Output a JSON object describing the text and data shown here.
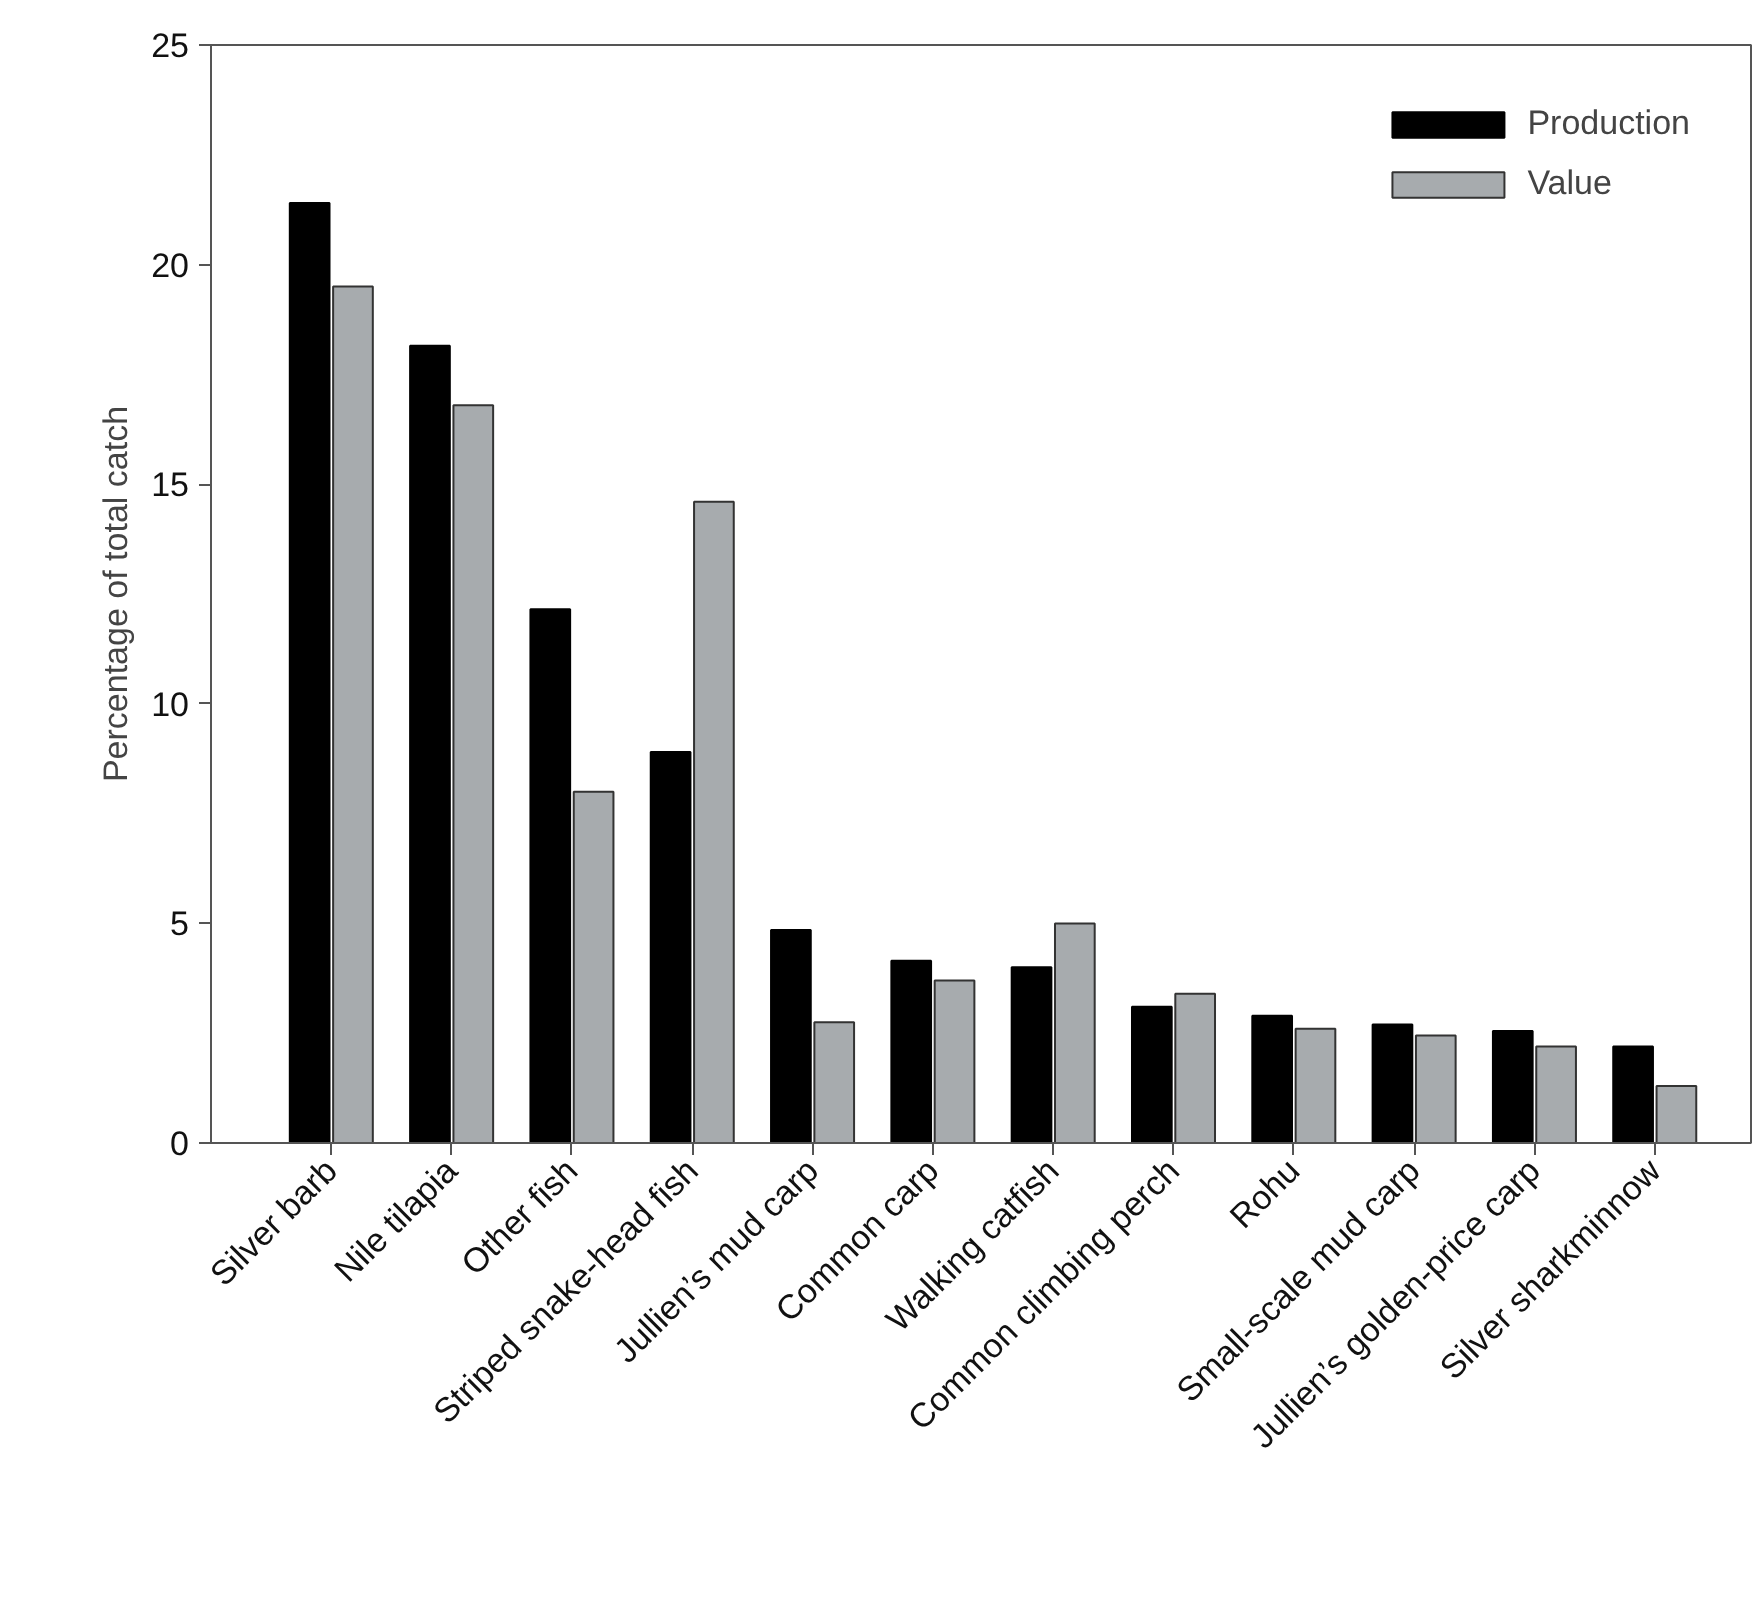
{
  "chart_data": {
    "type": "bar",
    "ylabel": "Percentage of total catch",
    "categories": [
      "Silver barb",
      "Nile tilapia",
      "Other fish",
      "Striped snake-head fish",
      "Jullien’s mud carp",
      "Common carp",
      "Walking catfish",
      "Common climbing perch",
      "Rohu",
      "Small-scale mud carp",
      "Jullien’s golden-price carp",
      "Silver sharkminnow"
    ],
    "series": [
      {
        "name": "Production",
        "color": "#000000",
        "values": [
          21.4,
          18.15,
          12.15,
          8.9,
          4.85,
          4.15,
          4.0,
          3.1,
          2.9,
          2.7,
          2.55,
          2.2
        ]
      },
      {
        "name": "Value",
        "color": "#a7abae",
        "values": [
          19.5,
          16.8,
          8.0,
          14.6,
          2.75,
          3.7,
          5.0,
          3.4,
          2.6,
          2.45,
          2.2,
          1.3
        ]
      }
    ],
    "ylim": [
      0,
      25
    ],
    "yticks": [
      0,
      5,
      10,
      15,
      20,
      25
    ],
    "legend": "top right"
  }
}
